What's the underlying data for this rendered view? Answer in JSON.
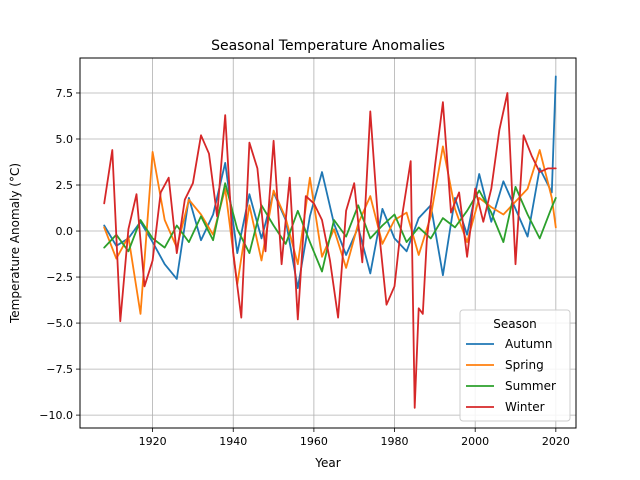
{
  "chart_data": {
    "type": "line",
    "title": "Seasonal Temperature Anomalies",
    "xlabel": "Year",
    "ylabel": "Temperature Anomaly (°C)",
    "xlim": [
      1902,
      2025
    ],
    "ylim": [
      -10.7,
      9.4
    ],
    "xticks": [
      1920,
      1940,
      1960,
      1980,
      2000,
      2020
    ],
    "xtick_labels": [
      "1920",
      "1940",
      "1960",
      "1980",
      "2000",
      "2020"
    ],
    "yticks": [
      -10.0,
      -7.5,
      -5.0,
      -2.5,
      0.0,
      2.5,
      5.0,
      7.5
    ],
    "ytick_labels": [
      "−10.0",
      "−7.5",
      "−5.0",
      "−2.5",
      "0.0",
      "2.5",
      "5.0",
      "7.5"
    ],
    "grid": true,
    "legend": {
      "title": "Season",
      "position": "lower-right"
    },
    "series": [
      {
        "name": "Autumn",
        "color": "#1f77b4",
        "x": [
          1908,
          1911,
          1914,
          1917,
          1920,
          1923,
          1926,
          1929,
          1932,
          1935,
          1938,
          1941,
          1944,
          1947,
          1950,
          1953,
          1956,
          1959,
          1962,
          1965,
          1968,
          1971,
          1974,
          1977,
          1980,
          1983,
          1986,
          1989,
          1992,
          1995,
          1998,
          2001,
          2004,
          2007,
          2010,
          2013,
          2016,
          2019,
          2020
        ],
        "y": [
          0.3,
          -0.8,
          -0.4,
          0.5,
          -0.6,
          -1.8,
          -2.6,
          1.8,
          -0.5,
          0.9,
          3.7,
          -1.2,
          2.0,
          -0.4,
          2.1,
          0.6,
          -3.1,
          0.8,
          3.2,
          0.4,
          -1.3,
          0.2,
          -2.3,
          1.2,
          -0.4,
          -1.1,
          0.7,
          1.4,
          -2.4,
          1.8,
          -0.2,
          3.1,
          0.5,
          2.7,
          1.2,
          -0.3,
          3.4,
          2.1,
          8.4
        ]
      },
      {
        "name": "Spring",
        "color": "#ff7f0e",
        "x": [
          1908,
          1911,
          1914,
          1917,
          1920,
          1923,
          1926,
          1929,
          1932,
          1935,
          1938,
          1941,
          1944,
          1947,
          1950,
          1953,
          1956,
          1959,
          1962,
          1965,
          1968,
          1971,
          1974,
          1977,
          1980,
          1983,
          1986,
          1989,
          1992,
          1995,
          1998,
          2001,
          2004,
          2007,
          2010,
          2013,
          2016,
          2019,
          2020
        ],
        "y": [
          0.2,
          -1.5,
          -0.3,
          -4.5,
          4.3,
          0.6,
          -0.9,
          1.7,
          0.9,
          -0.2,
          2.3,
          -2.9,
          1.4,
          -1.6,
          2.2,
          0.7,
          -1.8,
          2.9,
          -1.4,
          0.1,
          -2.0,
          0.4,
          1.9,
          -0.7,
          0.6,
          1.0,
          -1.3,
          0.8,
          4.6,
          1.2,
          -0.6,
          1.8,
          1.3,
          0.9,
          1.6,
          2.3,
          4.4,
          1.8,
          0.2
        ]
      },
      {
        "name": "Summer",
        "color": "#2ca02c",
        "x": [
          1908,
          1911,
          1914,
          1917,
          1920,
          1923,
          1926,
          1929,
          1932,
          1935,
          1938,
          1941,
          1944,
          1947,
          1950,
          1953,
          1956,
          1959,
          1962,
          1965,
          1968,
          1971,
          1974,
          1977,
          1980,
          1983,
          1986,
          1989,
          1992,
          1995,
          1998,
          2001,
          2004,
          2007,
          2010,
          2013,
          2016,
          2019,
          2020
        ],
        "y": [
          -0.9,
          -0.2,
          -1.1,
          0.6,
          -0.4,
          -0.9,
          0.3,
          -0.6,
          0.8,
          -0.5,
          2.6,
          0.1,
          -1.2,
          1.4,
          0.3,
          -0.7,
          1.1,
          -0.6,
          -2.2,
          0.6,
          -0.3,
          1.4,
          -0.4,
          0.3,
          0.9,
          -0.6,
          0.2,
          -0.4,
          0.7,
          0.2,
          1.1,
          2.2,
          1.0,
          -0.6,
          2.4,
          0.9,
          -0.4,
          1.3,
          1.8
        ]
      },
      {
        "name": "Winter",
        "color": "#d62728",
        "x": [
          1908,
          1910,
          1912,
          1914,
          1916,
          1918,
          1920,
          1922,
          1924,
          1926,
          1928,
          1930,
          1932,
          1934,
          1936,
          1938,
          1940,
          1942,
          1944,
          1946,
          1948,
          1950,
          1952,
          1954,
          1956,
          1958,
          1960,
          1962,
          1964,
          1966,
          1968,
          1970,
          1972,
          1974,
          1976,
          1978,
          1980,
          1982,
          1984,
          1985,
          1986,
          1987,
          1988,
          1990,
          1992,
          1994,
          1996,
          1998,
          2000,
          2002,
          2004,
          2006,
          2008,
          2010,
          2012,
          2014,
          2016,
          2018,
          2020
        ],
        "y": [
          1.5,
          4.4,
          -4.9,
          0.1,
          2.0,
          -3.0,
          -1.6,
          2.1,
          2.9,
          -1.2,
          1.7,
          2.6,
          5.2,
          4.2,
          0.8,
          6.3,
          -1.2,
          -4.7,
          4.8,
          3.4,
          -1.1,
          4.9,
          -1.8,
          2.9,
          -4.8,
          1.9,
          1.5,
          0.6,
          -1.6,
          -4.7,
          1.1,
          2.6,
          -1.7,
          6.5,
          0.3,
          -4.0,
          -3.0,
          1.0,
          3.8,
          -9.6,
          -4.2,
          -4.5,
          -0.5,
          3.5,
          7.0,
          1.0,
          2.1,
          -1.4,
          2.3,
          0.5,
          2.3,
          5.5,
          7.5,
          -1.8,
          5.2,
          4.1,
          3.2,
          3.4,
          3.4
        ]
      }
    ]
  }
}
